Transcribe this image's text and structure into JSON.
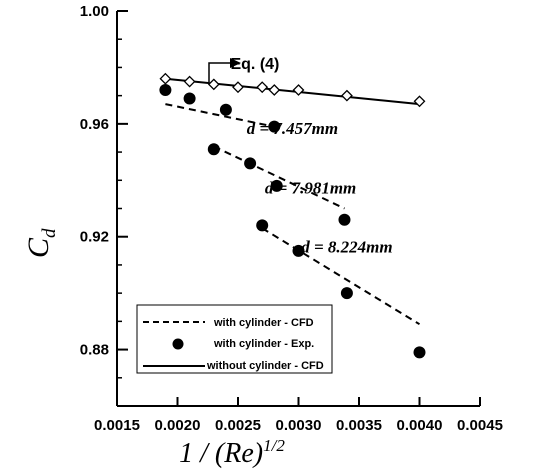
{
  "chart_data": {
    "type": "scatter",
    "xlabel": "1 / (Re)",
    "xlabel_sup": "1/2",
    "ylabel": "C",
    "ylabel_sub": "d",
    "xlim": [
      0.0015,
      0.0045
    ],
    "ylim": [
      0.86,
      1.0
    ],
    "x_ticks": [
      0.0015,
      0.002,
      0.0025,
      0.003,
      0.0035,
      0.004,
      0.0045
    ],
    "x_tick_labels": [
      "0.0015",
      "0.0020",
      "0.0025",
      "0.0030",
      "0.0035",
      "0.0040",
      "0.0045"
    ],
    "y_ticks": [
      0.88,
      0.92,
      0.96,
      1.0
    ],
    "y_tick_labels": [
      "0.88",
      "0.92",
      "0.96",
      "1.00"
    ],
    "grid": false,
    "legend_position": "bottom-left",
    "legend": [
      {
        "label": "with cylinder - CFD",
        "style": "dashed"
      },
      {
        "label": "with cylinder - Exp.",
        "style": "filled-circle"
      },
      {
        "label": "without cylinder - CFD",
        "style": "solid"
      }
    ],
    "annotations": [
      {
        "text": "d = 7.457mm",
        "x": 0.00295,
        "y": 0.9585
      },
      {
        "text": "d = 7.981mm",
        "x": 0.0031,
        "y": 0.9375
      },
      {
        "text": "d = 8.224mm",
        "x": 0.0034,
        "y": 0.9165
      },
      {
        "text": "Eq. (4)",
        "x": 0.00264,
        "y": 0.9815
      }
    ],
    "series": [
      {
        "style": "filled-circle",
        "x": [
          0.0019,
          0.0021,
          0.0024,
          0.0028
        ],
        "y": [
          0.972,
          0.969,
          0.965,
          0.959
        ]
      },
      {
        "style": "dashed",
        "x": [
          0.0019,
          0.0028
        ],
        "y": [
          0.967,
          0.959
        ]
      },
      {
        "style": "filled-circle",
        "x": [
          0.0023,
          0.0026,
          0.00282,
          0.00338
        ],
        "y": [
          0.951,
          0.946,
          0.938,
          0.926
        ]
      },
      {
        "style": "dashed",
        "x": [
          0.0023,
          0.00338
        ],
        "y": [
          0.952,
          0.93
        ]
      },
      {
        "style": "filled-circle",
        "x": [
          0.0027,
          0.003,
          0.0034,
          0.004
        ],
        "y": [
          0.924,
          0.915,
          0.9,
          0.879
        ]
      },
      {
        "style": "dashed",
        "x": [
          0.0027,
          0.004
        ],
        "y": [
          0.923,
          0.889
        ]
      },
      {
        "style": "open-diamond",
        "x": [
          0.0019,
          0.0021,
          0.0023,
          0.0025,
          0.0027,
          0.0028,
          0.003,
          0.0034,
          0.004
        ],
        "y": [
          0.976,
          0.975,
          0.974,
          0.973,
          0.973,
          0.972,
          0.972,
          0.97,
          0.968
        ]
      },
      {
        "style": "solid",
        "x": [
          0.0019,
          0.004
        ],
        "y": [
          0.976,
          0.967
        ]
      }
    ]
  }
}
